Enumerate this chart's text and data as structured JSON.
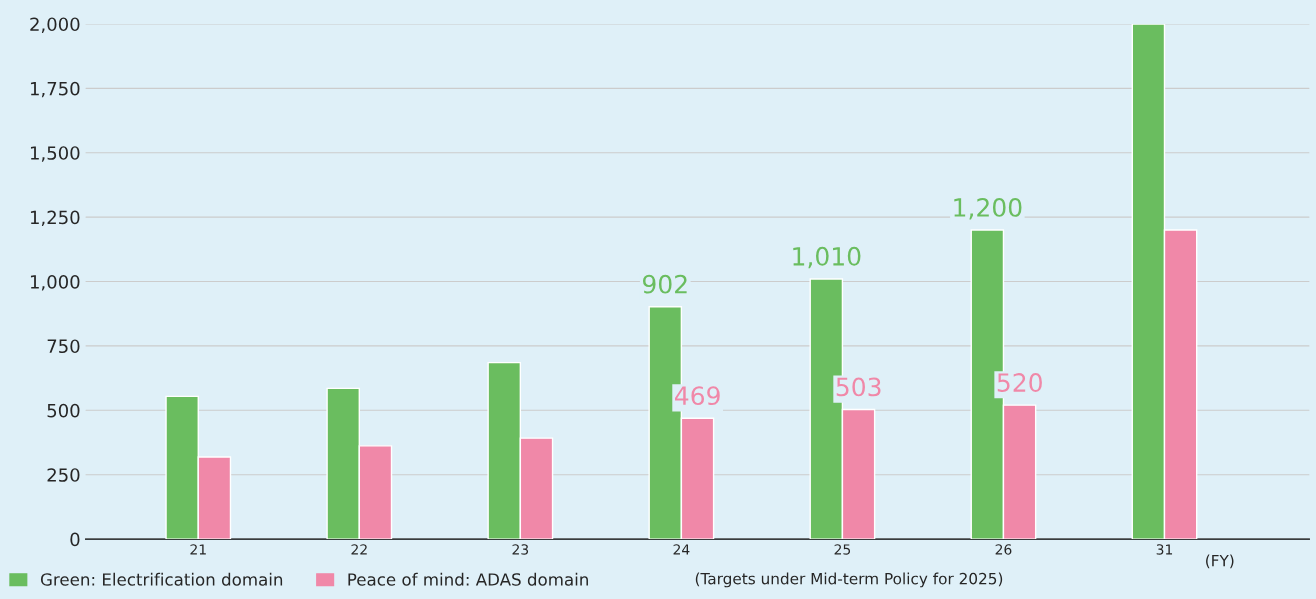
{
  "chart_data": {
    "type": "bar",
    "categories": [
      "21",
      "22",
      "23",
      "24",
      "25",
      "26",
      "31"
    ],
    "series": [
      {
        "name": "Green: Electrification domain",
        "color": "#6abd5f",
        "values": [
          554,
          585,
          685,
          902,
          1010,
          1200,
          2000
        ],
        "value_labels": [
          null,
          null,
          null,
          "902",
          "1,010",
          "1,200",
          null
        ]
      },
      {
        "name": "Peace of mind: ADAS domain",
        "color": "#f088a8",
        "values": [
          319,
          362,
          392,
          469,
          503,
          520,
          1200
        ],
        "value_labels": [
          null,
          null,
          null,
          "469",
          "503",
          "520",
          null
        ]
      }
    ],
    "ylim": [
      0,
      2000
    ],
    "yticks": [
      {
        "value": 0,
        "label": "0"
      },
      250,
      500,
      750,
      {
        "value": 1000,
        "label": "1,000"
      },
      {
        "value": 1250,
        "label": "1,250"
      },
      {
        "value": 1500,
        "label": "1,500"
      },
      {
        "value": 1750,
        "label": "1,750"
      },
      {
        "value": 2000,
        "label": "2,000"
      }
    ],
    "grid": "y",
    "legend": "bottom left",
    "annotations": [
      "(FY)",
      "(Targets under Mid-term Policy for 2025)"
    ]
  }
}
